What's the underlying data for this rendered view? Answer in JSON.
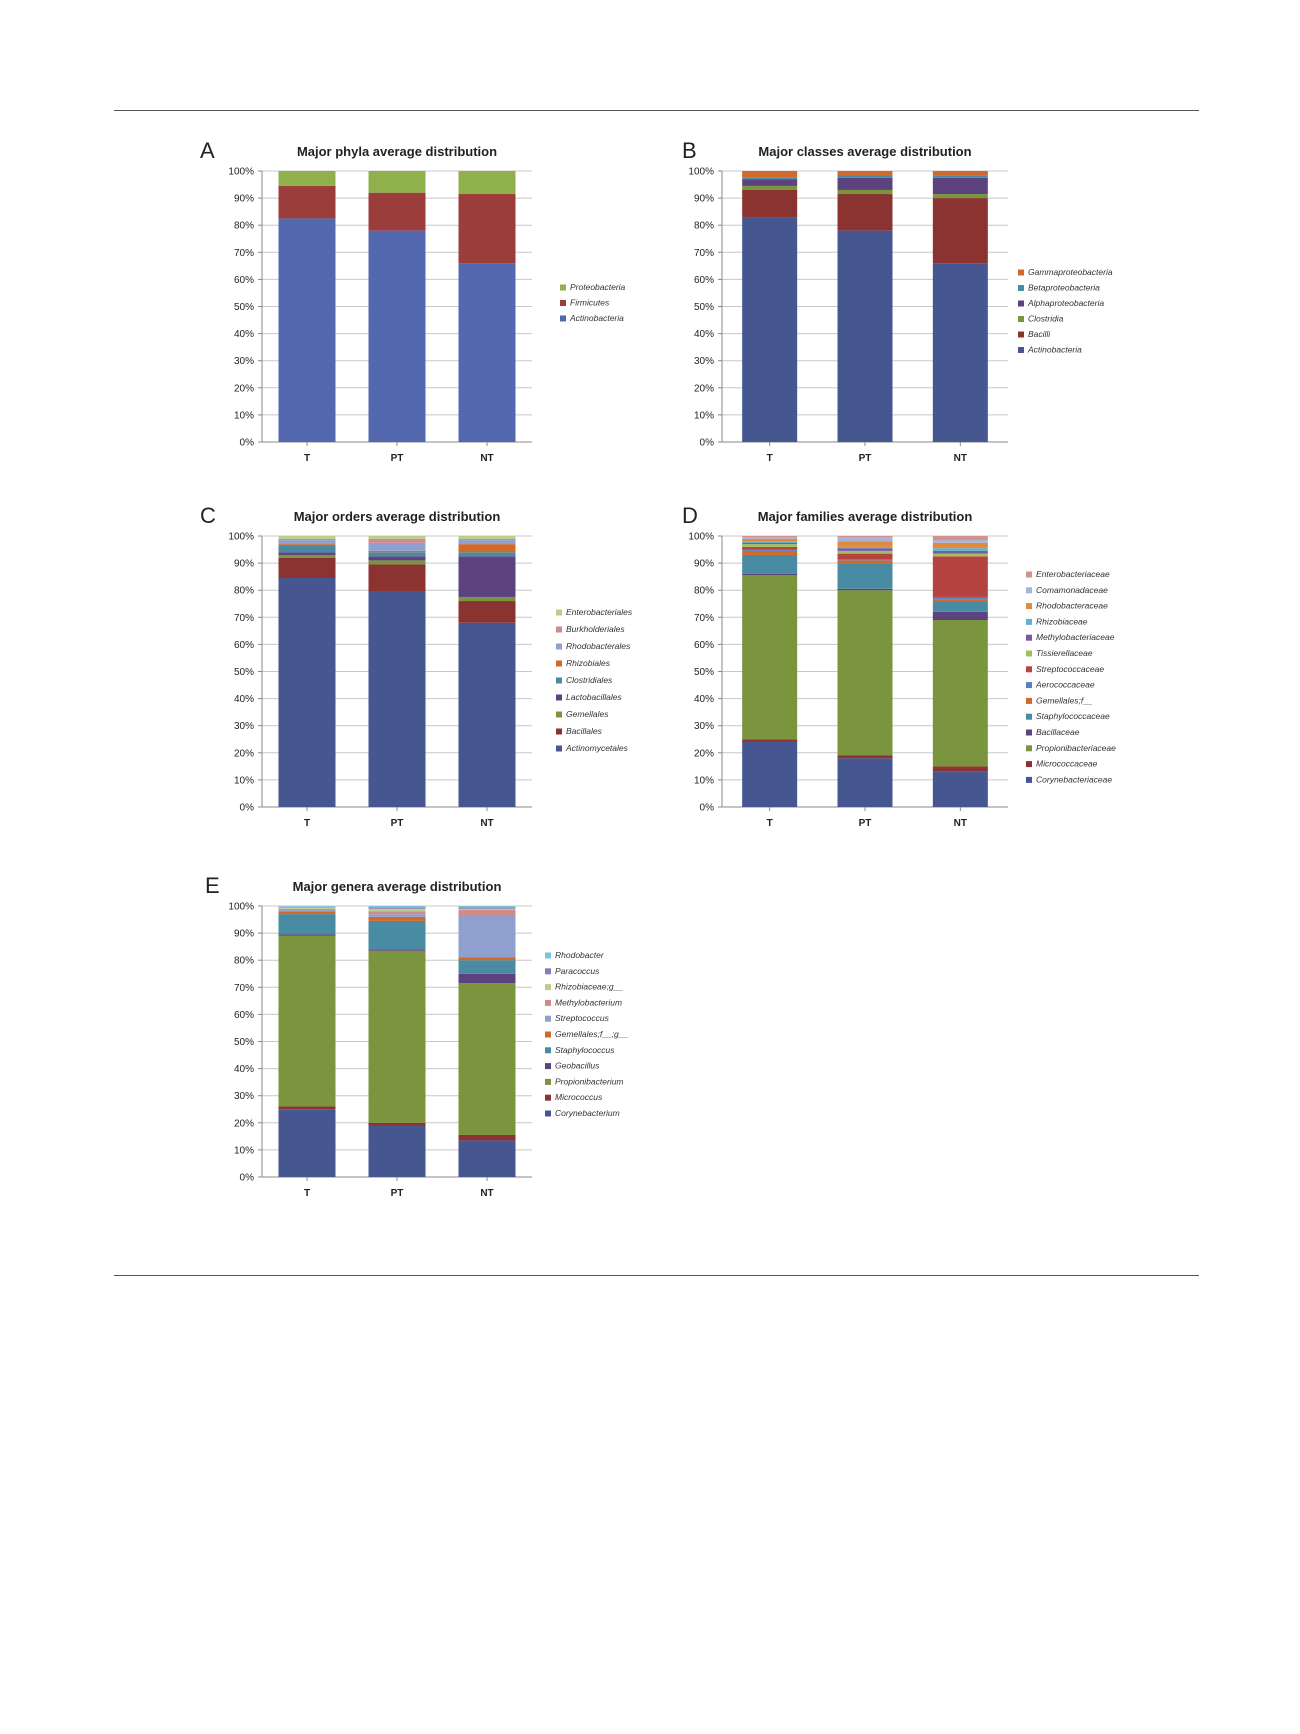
{
  "chart_data": [
    {
      "panel": "A",
      "type": "bar",
      "stacked": true,
      "title": "Major phyla average distribution",
      "categories": [
        "T",
        "PT",
        "NT"
      ],
      "ylim": [
        0,
        100
      ],
      "yticks": [
        "0%",
        "10%",
        "20%",
        "30%",
        "40%",
        "50%",
        "60%",
        "70%",
        "80%",
        "90%",
        "100%"
      ],
      "legend_position": "right",
      "series": [
        {
          "name": "Actinobacteria",
          "color": "#5468b0",
          "values": [
            82.5,
            78,
            66
          ]
        },
        {
          "name": "Firmicutes",
          "color": "#9b3d3b",
          "values": [
            12,
            14,
            25.5
          ]
        },
        {
          "name": "Proteobacteria",
          "color": "#8fb04b",
          "values": [
            5.5,
            8,
            8.5
          ]
        }
      ]
    },
    {
      "panel": "B",
      "type": "bar",
      "stacked": true,
      "title": "Major classes average distribution",
      "categories": [
        "T",
        "PT",
        "NT"
      ],
      "ylim": [
        0,
        100
      ],
      "yticks": [
        "0%",
        "10%",
        "20%",
        "30%",
        "40%",
        "50%",
        "60%",
        "70%",
        "80%",
        "90%",
        "100%"
      ],
      "legend_position": "right",
      "series": [
        {
          "name": "Actinobacteria",
          "color": "#465691",
          "values": [
            83,
            78,
            66
          ]
        },
        {
          "name": "Bacilli",
          "color": "#8b3331",
          "values": [
            10,
            13.5,
            24
          ]
        },
        {
          "name": "Clostridia",
          "color": "#7b953e",
          "values": [
            1.5,
            1.5,
            1.5
          ]
        },
        {
          "name": "Alphaproteobacteria",
          "color": "#5d4280",
          "values": [
            2.5,
            4.5,
            6
          ]
        },
        {
          "name": "Betaproteobacteria",
          "color": "#4a8ba4",
          "values": [
            0.5,
            1,
            0.8
          ]
        },
        {
          "name": "Gammaproteobacteria",
          "color": "#d0692a",
          "values": [
            2.5,
            1.5,
            1.7
          ]
        }
      ]
    },
    {
      "panel": "C",
      "type": "bar",
      "stacked": true,
      "title": "Major orders average distribution",
      "categories": [
        "T",
        "PT",
        "NT"
      ],
      "ylim": [
        0,
        100
      ],
      "yticks": [
        "0%",
        "10%",
        "20%",
        "30%",
        "40%",
        "50%",
        "60%",
        "70%",
        "80%",
        "90%",
        "100%"
      ],
      "legend_position": "right",
      "series": [
        {
          "name": "Actinomycetales",
          "color": "#465691",
          "values": [
            84.5,
            79.5,
            68
          ]
        },
        {
          "name": "Bacillales",
          "color": "#8b3331",
          "values": [
            7.5,
            10,
            8
          ]
        },
        {
          "name": "Gemellales",
          "color": "#7b953e",
          "values": [
            1,
            1.5,
            1.5
          ]
        },
        {
          "name": "Lactobacillales",
          "color": "#5d4280",
          "values": [
            1,
            1.5,
            15
          ]
        },
        {
          "name": "Clostridiales",
          "color": "#4a8ba4",
          "values": [
            2.5,
            1.5,
            1.5
          ]
        },
        {
          "name": "Rhizobiales",
          "color": "#d0692a",
          "values": [
            0.5,
            0.5,
            3
          ]
        },
        {
          "name": "Rhodobacterales",
          "color": "#8fa0cf",
          "values": [
            1.5,
            3,
            1.5
          ]
        },
        {
          "name": "Burkholderiales",
          "color": "#d08a88",
          "values": [
            0.5,
            1.5,
            0.5
          ]
        },
        {
          "name": "Enterobacteriales",
          "color": "#b8cf8a",
          "values": [
            1,
            1,
            1
          ]
        }
      ]
    },
    {
      "panel": "D",
      "type": "bar",
      "stacked": true,
      "title": "Major families average distribution",
      "categories": [
        "T",
        "PT",
        "NT"
      ],
      "ylim": [
        0,
        100
      ],
      "yticks": [
        "0%",
        "10%",
        "20%",
        "30%",
        "40%",
        "50%",
        "60%",
        "70%",
        "80%",
        "90%",
        "100%"
      ],
      "legend_position": "right",
      "series": [
        {
          "name": "Corynebacteriaceae",
          "color": "#465691",
          "values": [
            24,
            18,
            13
          ]
        },
        {
          "name": "Micrococcaceae",
          "color": "#8b3331",
          "values": [
            1,
            1,
            2
          ]
        },
        {
          "name": "Propionibacteriaceae",
          "color": "#7b953e",
          "values": [
            60.5,
            61,
            54
          ]
        },
        {
          "name": "Bacillaceae",
          "color": "#5d4280",
          "values": [
            0.5,
            0.5,
            3
          ]
        },
        {
          "name": "Staphylococcaceae",
          "color": "#4a8ba4",
          "values": [
            7,
            9.5,
            4
          ]
        },
        {
          "name": "Gemellales;f__",
          "color": "#d0692a",
          "values": [
            1.5,
            1,
            0.5
          ]
        },
        {
          "name": "Aerococcaceae",
          "color": "#5a7ec2",
          "values": [
            0.5,
            0.5,
            1
          ]
        },
        {
          "name": "Streptococcaceae",
          "color": "#b5433f",
          "values": [
            1,
            2,
            15
          ]
        },
        {
          "name": "Tissierellaceae",
          "color": "#9ec15a",
          "values": [
            1,
            1,
            1
          ]
        },
        {
          "name": "Methylobacteriaceae",
          "color": "#7a5aa6",
          "values": [
            0.5,
            1,
            1
          ]
        },
        {
          "name": "Rhizobiaceae",
          "color": "#5fb3cf",
          "values": [
            0.5,
            0.5,
            1
          ]
        },
        {
          "name": "Rhodobacteraceae",
          "color": "#e08a3c",
          "values": [
            1,
            2,
            2
          ]
        },
        {
          "name": "Comamonadaceae",
          "color": "#a6b4dc",
          "values": [
            0.5,
            1.5,
            1
          ]
        },
        {
          "name": "Enterobacteriaceae",
          "color": "#d4908e",
          "values": [
            0.5,
            0.5,
            1.5
          ]
        }
      ]
    },
    {
      "panel": "E",
      "type": "bar",
      "stacked": true,
      "title": "Major genera average distribution",
      "categories": [
        "T",
        "PT",
        "NT"
      ],
      "ylim": [
        0,
        100
      ],
      "yticks": [
        "0%",
        "10%",
        "20%",
        "30%",
        "40%",
        "50%",
        "60%",
        "70%",
        "80%",
        "90%",
        "100%"
      ],
      "legend_position": "right",
      "series": [
        {
          "name": "Corynebacterium",
          "color": "#465691",
          "values": [
            25,
            19,
            13.5
          ]
        },
        {
          "name": "Micrococcus",
          "color": "#8b3331",
          "values": [
            1,
            1,
            2
          ]
        },
        {
          "name": "Propionibacterium",
          "color": "#7b953e",
          "values": [
            63,
            63.5,
            56
          ]
        },
        {
          "name": "Geobacillus",
          "color": "#5d4280",
          "values": [
            0.5,
            0.5,
            3.5
          ]
        },
        {
          "name": "Staphylococcus",
          "color": "#4a8ba4",
          "values": [
            7.5,
            10.5,
            5
          ]
        },
        {
          "name": "Gemellales;f__;g__",
          "color": "#d0692a",
          "values": [
            1,
            1.5,
            1
          ]
        },
        {
          "name": "Streptococcus",
          "color": "#8fa0cf",
          "values": [
            0.5,
            1,
            15.5
          ]
        },
        {
          "name": "Methylobacterium",
          "color": "#d08a88",
          "values": [
            0.5,
            1,
            2
          ]
        },
        {
          "name": "Rhizobiaceae;g__",
          "color": "#b8cf8a",
          "values": [
            0.5,
            1,
            0.5
          ]
        },
        {
          "name": "Paracoccus",
          "color": "#8c7ab8",
          "values": [
            0.2,
            0.5,
            0.5
          ]
        },
        {
          "name": "Rhodobacter",
          "color": "#7ec3dc",
          "values": [
            0.3,
            0.5,
            0.5
          ]
        }
      ]
    }
  ]
}
